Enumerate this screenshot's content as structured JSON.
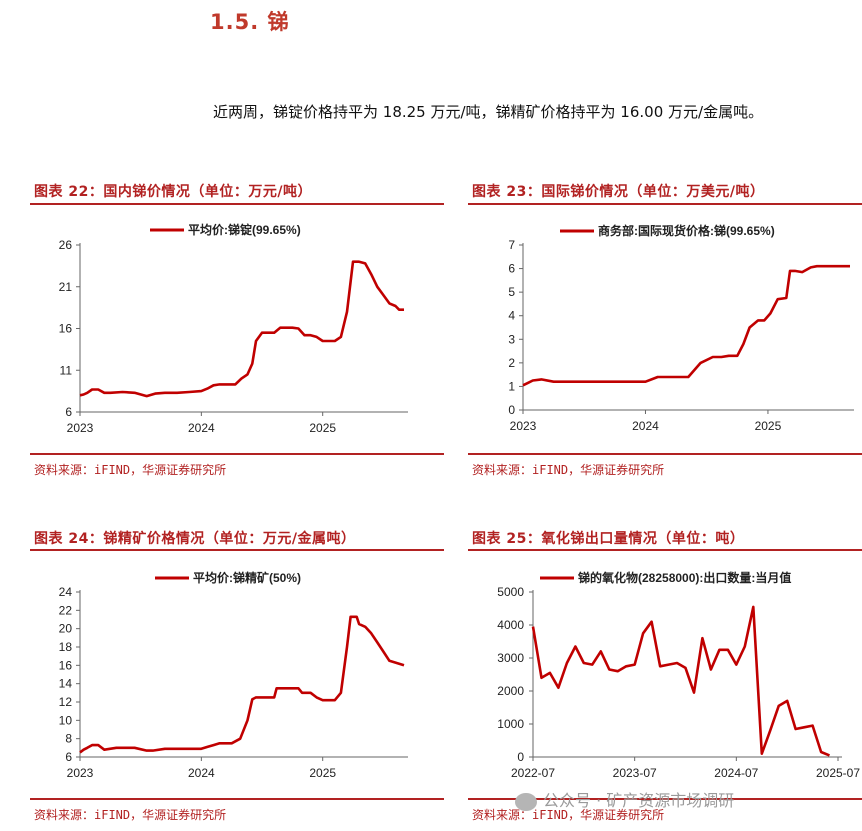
{
  "section": {
    "title": "1.5. 锑"
  },
  "intro": "近两周，锑锭价格持平为 18.25 万元/吨，锑精矿价格持平为 16.00 万元/金属吨。",
  "figures": [
    {
      "title": "图表 22：国内锑价情况（单位：万元/吨）",
      "source": "资料来源：iFIND，华源证券研究所"
    },
    {
      "title": "图表 23：国际锑价情况（单位：万美元/吨）",
      "source": "资料来源：iFIND，华源证券研究所"
    },
    {
      "title": "图表 24：锑精矿价格情况（单位：万元/金属吨）",
      "source": "资料来源：iFIND，华源证券研究所"
    },
    {
      "title": "图表 25：氧化锑出口量情况（单位：吨）",
      "source": "资料来源：iFIND，华源证券研究所"
    }
  ],
  "watermark": "公众号 · 矿产资源市场调研",
  "colors": {
    "series": "#c00000",
    "accent": "#b22222",
    "axis": "#666666"
  },
  "chart_data": [
    {
      "type": "line",
      "legend": "平均价:锑锭(99.65%)",
      "xlim": [
        2023.0,
        2025.67
      ],
      "ylim": [
        6,
        26
      ],
      "yticks": [
        6,
        11,
        16,
        21,
        26
      ],
      "xticks": [
        {
          "v": 2023,
          "label": "2023"
        },
        {
          "v": 2024,
          "label": "2024"
        },
        {
          "v": 2025,
          "label": "2025"
        }
      ],
      "x": [
        2023.0,
        2023.03,
        2023.06,
        2023.1,
        2023.15,
        2023.2,
        2023.25,
        2023.35,
        2023.45,
        2023.55,
        2023.62,
        2023.7,
        2023.8,
        2023.9,
        2024.0,
        2024.05,
        2024.1,
        2024.15,
        2024.2,
        2024.28,
        2024.33,
        2024.38,
        2024.42,
        2024.45,
        2024.5,
        2024.55,
        2024.6,
        2024.65,
        2024.7,
        2024.75,
        2024.8,
        2024.85,
        2024.9,
        2024.95,
        2025.0,
        2025.1,
        2025.15,
        2025.2,
        2025.25,
        2025.3,
        2025.35,
        2025.4,
        2025.45,
        2025.5,
        2025.55,
        2025.6,
        2025.63,
        2025.67
      ],
      "y": [
        8.0,
        8.1,
        8.3,
        8.7,
        8.7,
        8.3,
        8.3,
        8.4,
        8.3,
        7.9,
        8.2,
        8.3,
        8.3,
        8.4,
        8.5,
        8.8,
        9.2,
        9.3,
        9.3,
        9.3,
        10.0,
        10.5,
        11.8,
        14.5,
        15.5,
        15.5,
        15.5,
        16.1,
        16.1,
        16.1,
        16.0,
        15.2,
        15.2,
        15.0,
        14.5,
        14.5,
        15.0,
        18.0,
        24.0,
        24.0,
        23.8,
        22.5,
        21.0,
        20.0,
        19.0,
        18.7,
        18.25,
        18.25
      ]
    },
    {
      "type": "line",
      "legend": "商务部:国际现货价格:锑(99.65%)",
      "xlim": [
        2023.0,
        2025.67
      ],
      "ylim": [
        0,
        7
      ],
      "yticks": [
        0,
        1,
        2,
        3,
        4,
        5,
        6,
        7
      ],
      "xticks": [
        {
          "v": 2023,
          "label": "2023"
        },
        {
          "v": 2024,
          "label": "2024"
        },
        {
          "v": 2025,
          "label": "2025"
        }
      ],
      "x": [
        2023.0,
        2023.04,
        2023.08,
        2023.15,
        2023.25,
        2023.4,
        2023.6,
        2023.8,
        2023.9,
        2024.0,
        2024.1,
        2024.2,
        2024.35,
        2024.45,
        2024.55,
        2024.62,
        2024.68,
        2024.75,
        2024.8,
        2024.85,
        2024.92,
        2024.97,
        2025.02,
        2025.08,
        2025.15,
        2025.18,
        2025.22,
        2025.28,
        2025.35,
        2025.4,
        2025.5,
        2025.6,
        2025.67
      ],
      "y": [
        1.05,
        1.15,
        1.25,
        1.3,
        1.2,
        1.2,
        1.2,
        1.2,
        1.2,
        1.2,
        1.4,
        1.4,
        1.4,
        2.0,
        2.25,
        2.25,
        2.3,
        2.3,
        2.8,
        3.5,
        3.8,
        3.8,
        4.1,
        4.7,
        4.75,
        5.9,
        5.9,
        5.85,
        6.05,
        6.1,
        6.1,
        6.1,
        6.1
      ]
    },
    {
      "type": "line",
      "legend": "平均价:锑精矿(50%)",
      "xlim": [
        2023.0,
        2025.67
      ],
      "ylim": [
        6,
        24
      ],
      "yticks": [
        6,
        8,
        10,
        12,
        14,
        16,
        18,
        20,
        22,
        24
      ],
      "xticks": [
        {
          "v": 2023,
          "label": "2023"
        },
        {
          "v": 2024,
          "label": "2024"
        },
        {
          "v": 2025,
          "label": "2025"
        }
      ],
      "x": [
        2023.0,
        2023.03,
        2023.06,
        2023.1,
        2023.15,
        2023.2,
        2023.3,
        2023.45,
        2023.55,
        2023.6,
        2023.7,
        2023.8,
        2023.9,
        2024.0,
        2024.05,
        2024.1,
        2024.15,
        2024.25,
        2024.32,
        2024.38,
        2024.42,
        2024.45,
        2024.5,
        2024.6,
        2024.62,
        2024.7,
        2024.8,
        2024.83,
        2024.9,
        2024.95,
        2025.0,
        2025.1,
        2025.15,
        2025.2,
        2025.23,
        2025.28,
        2025.3,
        2025.35,
        2025.4,
        2025.45,
        2025.5,
        2025.55,
        2025.6,
        2025.67
      ],
      "y": [
        6.5,
        6.8,
        7.0,
        7.3,
        7.3,
        6.8,
        7.0,
        7.0,
        6.7,
        6.7,
        6.9,
        6.9,
        6.9,
        6.9,
        7.1,
        7.3,
        7.5,
        7.5,
        8.0,
        10.0,
        12.3,
        12.5,
        12.5,
        12.5,
        13.5,
        13.5,
        13.5,
        13.0,
        13.0,
        12.5,
        12.2,
        12.2,
        13.0,
        18.0,
        21.3,
        21.3,
        20.5,
        20.2,
        19.5,
        18.5,
        17.5,
        16.5,
        16.3,
        16.0
      ]
    },
    {
      "type": "line",
      "legend": "锑的氧化物(28258000):出口数量:当月值",
      "xlim": [
        0,
        36
      ],
      "ylim": [
        0,
        5000
      ],
      "yticks": [
        0,
        1000,
        2000,
        3000,
        4000,
        5000
      ],
      "xticks": [
        {
          "v": 0,
          "label": "2022-07"
        },
        {
          "v": 12,
          "label": "2023-07"
        },
        {
          "v": 24,
          "label": "2024-07"
        },
        {
          "v": 36,
          "label": "2025-07"
        }
      ],
      "x": [
        0,
        1,
        2,
        3,
        4,
        5,
        6,
        7,
        8,
        9,
        10,
        11,
        12,
        13,
        14,
        15,
        16,
        17,
        18,
        19,
        20,
        21,
        22,
        23,
        24,
        25,
        26,
        27,
        28,
        29,
        30,
        31,
        32,
        33,
        34,
        35
      ],
      "y": [
        3950,
        2400,
        2550,
        2100,
        2850,
        3350,
        2850,
        2800,
        3200,
        2650,
        2600,
        2750,
        2800,
        3750,
        4100,
        2750,
        2800,
        2850,
        2700,
        1950,
        3600,
        2650,
        3250,
        3250,
        2800,
        3350,
        4550,
        100,
        800,
        1550,
        1700,
        850,
        900,
        950,
        150,
        50
      ]
    }
  ]
}
